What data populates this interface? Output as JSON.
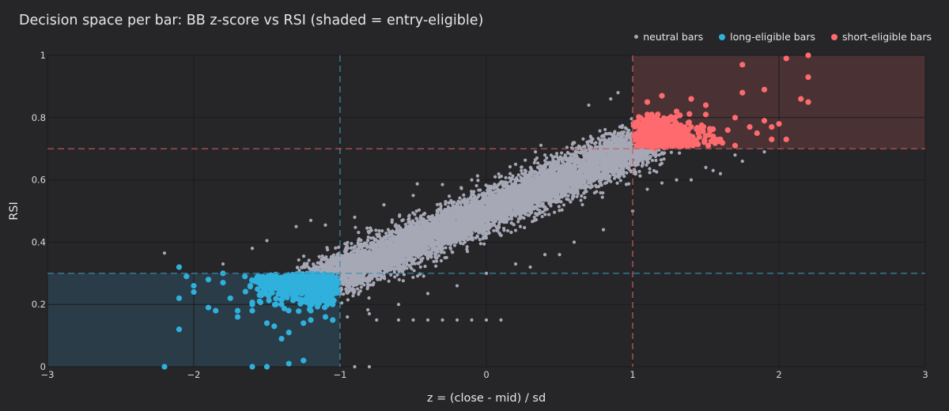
{
  "chart_data": {
    "type": "scatter",
    "title": "Decision space per bar: BB z-score vs RSI (shaded = entry-eligible)",
    "xlabel": "z = (close - mid) / sd",
    "ylabel": "RSI",
    "xlim": [
      -3,
      3
    ],
    "ylim": [
      0,
      1
    ],
    "x_ticks": [
      "−3",
      "−2",
      "−1",
      "0",
      "1",
      "2",
      "3"
    ],
    "y_ticks": [
      "0",
      "0.2",
      "0.4",
      "0.6",
      "0.8",
      "1"
    ],
    "grid": true,
    "legend_position": "top-right",
    "thresholds": {
      "z_long": -1,
      "z_short": 1,
      "rsi_long": 0.3,
      "rsi_short": 0.7
    },
    "shaded_regions": [
      {
        "name": "long-eligible zone",
        "x": [
          -3,
          -1
        ],
        "y": [
          0,
          0.3
        ],
        "color": "#2a3c47"
      },
      {
        "name": "short-eligible zone",
        "x": [
          1,
          3
        ],
        "y": [
          0.7,
          1
        ],
        "color": "#4a3234"
      }
    ],
    "series": [
      {
        "name": "neutral bars",
        "color": "#a6a8b6",
        "points": [
          [
            -2.2,
            0.365
          ],
          [
            -1.8,
            0.33
          ],
          [
            -1.6,
            0.38
          ],
          [
            -1.5,
            0.405
          ],
          [
            -1.3,
            0.45
          ],
          [
            -1.2,
            0.47
          ],
          [
            -1.1,
            0.455
          ],
          [
            -0.9,
            0.48
          ],
          [
            -0.7,
            0.52
          ],
          [
            -0.5,
            0.55
          ],
          [
            -0.3,
            0.585
          ],
          [
            -0.1,
            0.6
          ],
          [
            0.2,
            0.65
          ],
          [
            0.4,
            0.68
          ],
          [
            0.6,
            0.72
          ],
          [
            0.7,
            0.84
          ],
          [
            0.85,
            0.86
          ],
          [
            0.9,
            0.88
          ],
          [
            -0.95,
            0.16
          ],
          [
            -0.8,
            0.17
          ],
          [
            -0.6,
            0.2
          ],
          [
            -0.4,
            0.235
          ],
          [
            -0.2,
            0.26
          ],
          [
            0,
            0.3
          ],
          [
            0.2,
            0.33
          ],
          [
            0.4,
            0.36
          ],
          [
            0.6,
            0.4
          ],
          [
            0.8,
            0.44
          ],
          [
            1,
            0.5
          ],
          [
            1.1,
            0.57
          ],
          [
            1.2,
            0.59
          ],
          [
            1.3,
            0.6
          ],
          [
            1.5,
            0.64
          ],
          [
            1.7,
            0.68
          ],
          [
            1.75,
            0.66
          ],
          [
            1.9,
            0.69
          ],
          [
            1.4,
            0.6
          ],
          [
            1.55,
            0.63
          ],
          [
            1.6,
            0.62
          ],
          [
            0.3,
            0.32
          ],
          [
            0.5,
            0.36
          ],
          [
            -0.75,
            0.15
          ],
          [
            -0.6,
            0.15
          ],
          [
            -0.5,
            0.15
          ],
          [
            -0.4,
            0.15
          ],
          [
            -0.3,
            0.15
          ],
          [
            -0.2,
            0.15
          ],
          [
            -0.1,
            0.15
          ],
          [
            0,
            0.15
          ],
          [
            0.1,
            0.15
          ],
          [
            -0.9,
            0.0
          ],
          [
            -0.8,
            0.0
          ]
        ]
      },
      {
        "name": "long-eligible bars",
        "color": "#2fb0dd",
        "points": [
          [
            -2.2,
            0.0
          ],
          [
            -2.1,
            0.32
          ],
          [
            -2.05,
            0.29
          ],
          [
            -2.0,
            0.26
          ],
          [
            -1.9,
            0.28
          ],
          [
            -1.8,
            0.27
          ],
          [
            -2.1,
            0.22
          ],
          [
            -2.0,
            0.24
          ],
          [
            -1.9,
            0.19
          ],
          [
            -1.85,
            0.18
          ],
          [
            -1.75,
            0.22
          ],
          [
            -1.7,
            0.16
          ],
          [
            -1.6,
            0.18
          ],
          [
            -1.5,
            0.14
          ],
          [
            -1.45,
            0.13
          ],
          [
            -1.4,
            0.09
          ],
          [
            -1.35,
            0.11
          ],
          [
            -1.25,
            0.14
          ],
          [
            -1.2,
            0.15
          ],
          [
            -1.1,
            0.16
          ],
          [
            -1.05,
            0.15
          ],
          [
            -2.1,
            0.12
          ],
          [
            -1.7,
            0.18
          ],
          [
            -1.6,
            0.2
          ],
          [
            -1.55,
            0.21
          ],
          [
            -1.5,
            0.25
          ],
          [
            -1.45,
            0.27
          ],
          [
            -1.3,
            0.26
          ],
          [
            -1.2,
            0.27
          ],
          [
            -1.1,
            0.25
          ],
          [
            -1.05,
            0.28
          ],
          [
            -1.35,
            0.01
          ],
          [
            -1.25,
            0.02
          ],
          [
            -1.5,
            0.0
          ],
          [
            -1.6,
            0.0
          ],
          [
            -1.8,
            0.3
          ],
          [
            -1.65,
            0.29
          ],
          [
            -1.4,
            0.28
          ],
          [
            -1.15,
            0.2
          ],
          [
            -1.3,
            0.22
          ],
          [
            -1.2,
            0.18
          ],
          [
            -1.1,
            0.22
          ],
          [
            -1.05,
            0.2
          ],
          [
            -1.4,
            0.2
          ],
          [
            -1.25,
            0.24
          ],
          [
            -1.15,
            0.28
          ],
          [
            -1.35,
            0.25
          ]
        ]
      },
      {
        "name": "short-eligible bars",
        "color": "#fe6a6e",
        "points": [
          [
            2.2,
            1.0
          ],
          [
            2.05,
            0.99
          ],
          [
            1.75,
            0.97
          ],
          [
            2.2,
            0.93
          ],
          [
            2.2,
            0.85
          ],
          [
            2.15,
            0.86
          ],
          [
            1.9,
            0.89
          ],
          [
            1.75,
            0.88
          ],
          [
            1.5,
            0.84
          ],
          [
            1.4,
            0.86
          ],
          [
            1.2,
            0.87
          ],
          [
            1.1,
            0.85
          ],
          [
            1.3,
            0.82
          ],
          [
            1.5,
            0.81
          ],
          [
            1.7,
            0.8
          ],
          [
            1.9,
            0.79
          ],
          [
            2.0,
            0.78
          ],
          [
            1.95,
            0.77
          ],
          [
            1.8,
            0.77
          ],
          [
            1.65,
            0.76
          ],
          [
            1.55,
            0.74
          ],
          [
            1.45,
            0.75
          ],
          [
            1.35,
            0.73
          ],
          [
            1.25,
            0.74
          ],
          [
            1.15,
            0.72
          ],
          [
            1.05,
            0.73
          ],
          [
            1.6,
            0.73
          ],
          [
            1.7,
            0.71
          ],
          [
            2.05,
            0.73
          ],
          [
            1.95,
            0.73
          ],
          [
            1.85,
            0.75
          ],
          [
            1.2,
            0.79
          ],
          [
            1.1,
            0.81
          ],
          [
            1.05,
            0.77
          ],
          [
            1.3,
            0.78
          ],
          [
            1.4,
            0.77
          ]
        ]
      }
    ]
  }
}
